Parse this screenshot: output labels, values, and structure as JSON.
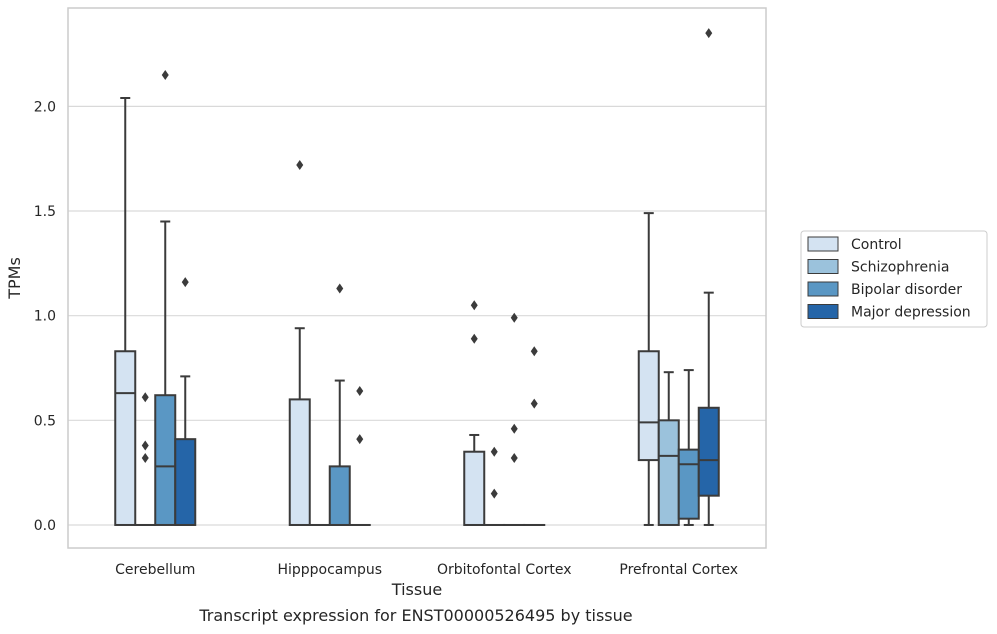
{
  "chart_data": {
    "type": "box",
    "caption": "Transcript expression for ENST00000526495 by tissue",
    "xlabel": "Tissue",
    "ylabel": "TPMs",
    "ylim": [
      -0.11,
      2.47
    ],
    "yticks": [
      0.0,
      0.5,
      1.0,
      1.5,
      2.0
    ],
    "ytick_labels": [
      "0.0",
      "0.5",
      "1.0",
      "1.5",
      "2.0"
    ],
    "grid": "y",
    "legend_position": "right",
    "categories": [
      "Cerebellum",
      "Hipppocampus",
      "Orbitofontal Cortex",
      "Prefrontal Cortex"
    ],
    "series": [
      {
        "name": "Control",
        "color": "#d4e3f2",
        "boxes": [
          {
            "q1": 0,
            "median": 0.63,
            "q3": 0.83,
            "whisker_low": 0,
            "whisker_high": 2.04,
            "outliers": []
          },
          {
            "q1": 0,
            "median": 0,
            "q3": 0.6,
            "whisker_low": 0,
            "whisker_high": 0.94,
            "outliers": [
              1.72
            ]
          },
          {
            "q1": 0,
            "median": 0,
            "q3": 0.35,
            "whisker_low": 0,
            "whisker_high": 0.43,
            "outliers": [
              0.89,
              1.05
            ]
          },
          {
            "q1": 0.31,
            "median": 0.49,
            "q3": 0.83,
            "whisker_low": 0,
            "whisker_high": 1.49,
            "outliers": []
          }
        ]
      },
      {
        "name": "Schizophrenia",
        "color": "#9bc2dc",
        "boxes": [
          {
            "q1": 0,
            "median": 0,
            "q3": 0,
            "whisker_low": 0,
            "whisker_high": 0,
            "outliers": [
              0.32,
              0.38,
              0.61
            ]
          },
          {
            "q1": 0,
            "median": 0,
            "q3": 0,
            "whisker_low": 0,
            "whisker_high": 0,
            "outliers": []
          },
          {
            "q1": 0,
            "median": 0,
            "q3": 0,
            "whisker_low": 0,
            "whisker_high": 0,
            "outliers": [
              0.15,
              0.35
            ]
          },
          {
            "q1": 0,
            "median": 0.33,
            "q3": 0.5,
            "whisker_low": 0,
            "whisker_high": 0.73,
            "outliers": []
          }
        ]
      },
      {
        "name": "Bipolar disorder",
        "color": "#5a97c4",
        "boxes": [
          {
            "q1": 0,
            "median": 0.28,
            "q3": 0.62,
            "whisker_low": 0,
            "whisker_high": 1.45,
            "outliers": [
              2.15
            ]
          },
          {
            "q1": 0,
            "median": 0,
            "q3": 0.28,
            "whisker_low": 0,
            "whisker_high": 0.69,
            "outliers": [
              1.13
            ]
          },
          {
            "q1": 0,
            "median": 0,
            "q3": 0,
            "whisker_low": 0,
            "whisker_high": 0,
            "outliers": [
              0.32,
              0.46,
              0.99
            ]
          },
          {
            "q1": 0.03,
            "median": 0.29,
            "q3": 0.36,
            "whisker_low": 0,
            "whisker_high": 0.74,
            "outliers": []
          }
        ]
      },
      {
        "name": "Major depression",
        "color": "#2565a8",
        "boxes": [
          {
            "q1": 0,
            "median": 0,
            "q3": 0.41,
            "whisker_low": 0,
            "whisker_high": 0.71,
            "outliers": [
              1.16
            ]
          },
          {
            "q1": 0,
            "median": 0,
            "q3": 0,
            "whisker_low": 0,
            "whisker_high": 0,
            "outliers": [
              0.41,
              0.64
            ]
          },
          {
            "q1": 0,
            "median": 0,
            "q3": 0,
            "whisker_low": 0,
            "whisker_high": 0,
            "outliers": [
              0.58,
              0.83
            ]
          },
          {
            "q1": 0.14,
            "median": 0.31,
            "q3": 0.56,
            "whisker_low": 0,
            "whisker_high": 1.11,
            "outliers": [
              2.35
            ]
          }
        ]
      }
    ]
  }
}
